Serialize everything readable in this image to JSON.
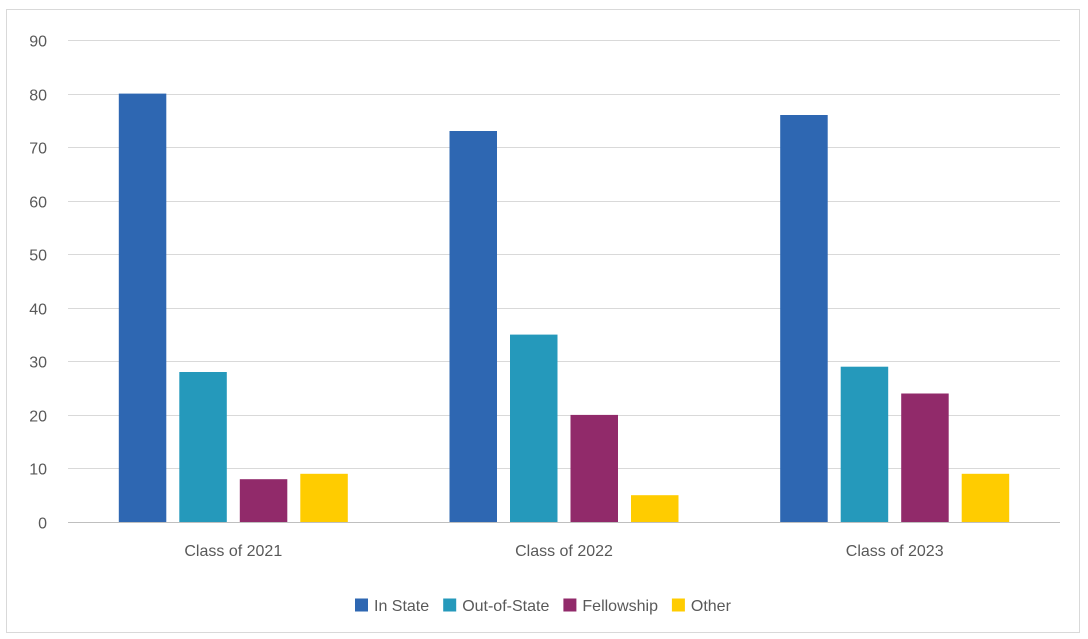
{
  "chart_data": {
    "type": "bar",
    "title": "",
    "xlabel": "",
    "ylabel": "",
    "ylim": [
      0,
      90
    ],
    "yticks": [
      0,
      10,
      20,
      30,
      40,
      50,
      60,
      70,
      80,
      90
    ],
    "grid": true,
    "legend_position": "bottom",
    "categories": [
      "Class of 2021",
      "Class of 2022",
      "Class of 2023"
    ],
    "series": [
      {
        "name": "In State",
        "color": "#2e67b2",
        "values": [
          80,
          73,
          76
        ]
      },
      {
        "name": "Out-of-State",
        "color": "#2599bb",
        "values": [
          28,
          35,
          29
        ]
      },
      {
        "name": "Fellowship",
        "color": "#912a6a",
        "values": [
          8,
          20,
          24
        ]
      },
      {
        "name": "Other",
        "color": "#ffcc00",
        "values": [
          9,
          5,
          9
        ]
      }
    ]
  }
}
